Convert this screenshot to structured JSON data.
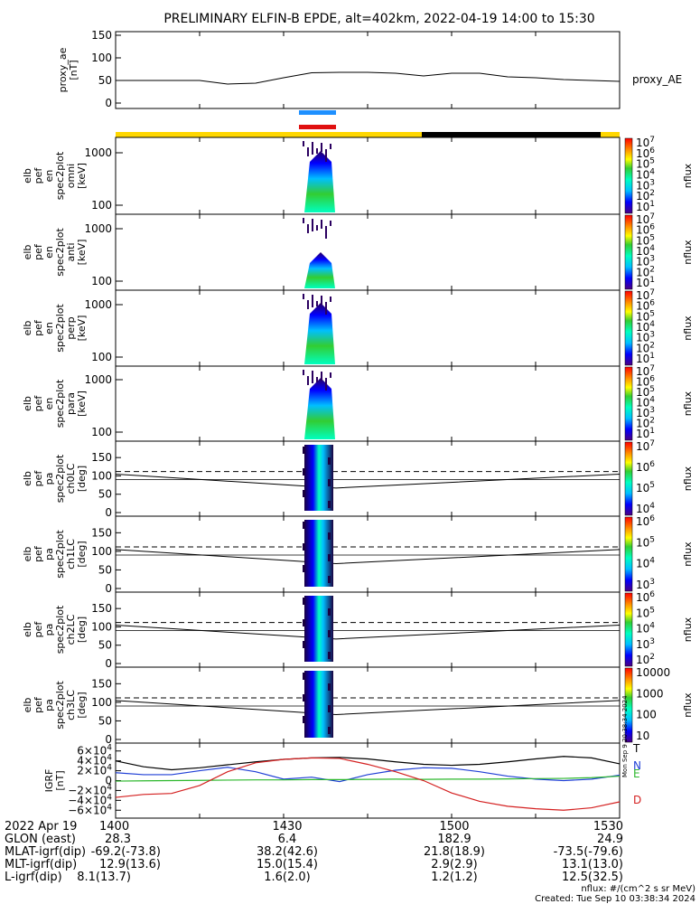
{
  "title": "PRELIMINARY ELFIN-B EPDE, alt=402km, 2022-04-19 14:00 to 15:30",
  "colors": {
    "blue_bar": "#1e90ff",
    "red_bar": "#e01010",
    "yellow": "#ffd700",
    "black": "#000000",
    "T": "#000000",
    "N": "#1f3fd6",
    "E": "#2db82d",
    "D": "#d42020"
  },
  "footer": {
    "rows": [
      [
        "2022 Apr 19",
        "1400",
        "1430",
        "1500",
        "1530"
      ],
      [
        "GLON (east)",
        "28.3",
        "6.4",
        "182.9",
        "24.9"
      ],
      [
        "MLAT-igrf(dip)",
        "-69.2(-73.8)",
        "38.2(42.6)",
        "21.8(18.9)",
        "-73.5(-79.6)"
      ],
      [
        "MLT-igrf(dip)",
        "12.9(13.6)",
        "15.0(15.4)",
        "2.9(2.9)",
        "13.1(13.0)"
      ],
      [
        "L-igrf(dip)",
        "8.1(13.7)",
        "1.6(2.0)",
        "1.2(1.2)",
        "12.5(32.5)"
      ]
    ],
    "units_note": "nflux: #/(cm^2 s sr MeV)",
    "created": "Created: Tue Sep 10 03:38:34 2024",
    "side_stamp": "Mon Sep 9 20:38:34 2024"
  },
  "chart_data": [
    {
      "type": "line",
      "panel": "proxy_ae",
      "ylabel": [
        "proxy_ae",
        "[nT]"
      ],
      "legend": "proxy_AE",
      "ylim": [
        0,
        150
      ],
      "yticks": [
        0,
        50,
        100,
        150
      ],
      "x_minutes": [
        0,
        5,
        10,
        15,
        20,
        25,
        30,
        35,
        40,
        45,
        50,
        55,
        60,
        65,
        70,
        75,
        80,
        85,
        90
      ],
      "values": [
        50,
        50,
        50,
        50,
        42,
        44,
        56,
        67,
        68,
        68,
        66,
        60,
        66,
        66,
        58,
        56,
        52,
        50,
        48
      ]
    },
    {
      "type": "heatmap",
      "panel": "en-omni",
      "ylabel": [
        "elb",
        "pef",
        "en",
        "spec2plot",
        "omni",
        "[keV]"
      ],
      "ylog": true,
      "yticks": [
        100,
        1000
      ],
      "colorbar": {
        "label": "nflux",
        "ticks": [
          "10^7",
          "10^6",
          "10^5",
          "10^4",
          "10^3",
          "10^2",
          "10^1"
        ]
      }
    },
    {
      "type": "heatmap",
      "panel": "en-anti",
      "ylabel": [
        "elb",
        "pef",
        "en",
        "spec2plot",
        "anti",
        "[keV]"
      ],
      "ylog": true,
      "yticks": [
        100,
        1000
      ],
      "colorbar": {
        "label": "nflux",
        "ticks": [
          "10^7",
          "10^6",
          "10^5",
          "10^4",
          "10^3",
          "10^2",
          "10^1"
        ]
      }
    },
    {
      "type": "heatmap",
      "panel": "en-perp",
      "ylabel": [
        "elb",
        "pef",
        "en",
        "spec2plot",
        "perp",
        "[keV]"
      ],
      "ylog": true,
      "yticks": [
        100,
        1000
      ],
      "colorbar": {
        "label": "nflux",
        "ticks": [
          "10^7",
          "10^6",
          "10^5",
          "10^4",
          "10^3",
          "10^2",
          "10^1"
        ]
      }
    },
    {
      "type": "heatmap",
      "panel": "en-para",
      "ylabel": [
        "elb",
        "pef",
        "en",
        "spec2plot",
        "para",
        "[keV]"
      ],
      "ylog": true,
      "yticks": [
        100,
        1000
      ],
      "colorbar": {
        "label": "nflux",
        "ticks": [
          "10^7",
          "10^6",
          "10^5",
          "10^4",
          "10^3",
          "10^2",
          "10^1"
        ]
      }
    },
    {
      "type": "heatmap",
      "panel": "pa-ch0LC",
      "ylabel": [
        "elb",
        "pef",
        "pa",
        "spec2plot",
        "ch0LC",
        "[deg]"
      ],
      "ylim": [
        0,
        180
      ],
      "yticks": [
        0,
        50,
        100,
        150
      ],
      "colorbar": {
        "label": "nflux",
        "ticks": [
          "10^7",
          "10^6",
          "10^5",
          "10^4"
        ]
      }
    },
    {
      "type": "heatmap",
      "panel": "pa-ch1LC",
      "ylabel": [
        "elb",
        "pef",
        "pa",
        "spec2plot",
        "ch1LC",
        "[deg]"
      ],
      "ylim": [
        0,
        180
      ],
      "yticks": [
        0,
        50,
        100,
        150
      ],
      "colorbar": {
        "label": "nflux",
        "ticks": [
          "10^6",
          "10^5",
          "10^4",
          "10^3"
        ]
      }
    },
    {
      "type": "heatmap",
      "panel": "pa-ch2LC",
      "ylabel": [
        "elb",
        "pef",
        "pa",
        "spec2plot",
        "ch2LC",
        "[deg]"
      ],
      "ylim": [
        0,
        180
      ],
      "yticks": [
        0,
        50,
        100,
        150
      ],
      "colorbar": {
        "label": "nflux",
        "ticks": [
          "10^6",
          "10^5",
          "10^4",
          "10^3",
          "10^2"
        ]
      }
    },
    {
      "type": "heatmap",
      "panel": "pa-ch3LC",
      "ylabel": [
        "elb",
        "pef",
        "pa",
        "spec2plot",
        "ch3LC",
        "[deg]"
      ],
      "ylim": [
        0,
        180
      ],
      "yticks": [
        0,
        50,
        100,
        150
      ],
      "colorbar": {
        "label": "nflux",
        "ticks": [
          "10000",
          "1000",
          "100",
          "10"
        ]
      }
    },
    {
      "type": "line",
      "panel": "igrf",
      "ylabel": [
        "IGRF",
        "[nT]"
      ],
      "ylim": [
        -65000,
        65000
      ],
      "yticks": [
        "6×10^4",
        "4×10^4",
        "2×10^4",
        "0",
        "−2×10^4",
        "−4×10^4",
        "−6×10^4"
      ],
      "x_minutes": [
        0,
        5,
        10,
        15,
        20,
        25,
        30,
        35,
        40,
        45,
        50,
        55,
        60,
        65,
        70,
        75,
        80,
        85,
        90
      ],
      "series": [
        {
          "name": "T",
          "values": [
            40000,
            28000,
            22000,
            26000,
            32000,
            38000,
            43000,
            46000,
            47000,
            44000,
            38000,
            33000,
            31000,
            33000,
            38000,
            44000,
            49000,
            46000,
            34000
          ]
        },
        {
          "name": "N",
          "values": [
            16000,
            12000,
            12000,
            20000,
            27000,
            18000,
            3000,
            7000,
            -2000,
            12000,
            21000,
            26000,
            25000,
            18000,
            9000,
            3000,
            0,
            3000,
            11000
          ]
        },
        {
          "name": "E",
          "values": [
            -1000,
            -500,
            0,
            500,
            1000,
            1500,
            1500,
            2000,
            2000,
            2500,
            3000,
            2500,
            3000,
            3000,
            3500,
            4000,
            4500,
            6000,
            9000
          ]
        },
        {
          "name": "D",
          "values": [
            -34000,
            -28000,
            -26000,
            -10000,
            18000,
            36000,
            43000,
            46000,
            45000,
            33000,
            18000,
            0,
            -25000,
            -42000,
            -52000,
            -57000,
            -60000,
            -55000,
            -43000
          ]
        }
      ]
    }
  ]
}
